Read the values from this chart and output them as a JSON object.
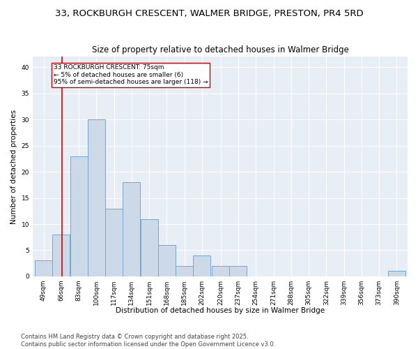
{
  "title1": "33, ROCKBURGH CRESCENT, WALMER BRIDGE, PRESTON, PR4 5RD",
  "title2": "Size of property relative to detached houses in Walmer Bridge",
  "xlabel": "Distribution of detached houses by size in Walmer Bridge",
  "ylabel": "Number of detached properties",
  "bin_labels": [
    "49sqm",
    "66sqm",
    "83sqm",
    "100sqm",
    "117sqm",
    "134sqm",
    "151sqm",
    "168sqm",
    "185sqm",
    "202sqm",
    "220sqm",
    "237sqm",
    "254sqm",
    "271sqm",
    "288sqm",
    "305sqm",
    "322sqm",
    "339sqm",
    "356sqm",
    "373sqm",
    "390sqm"
  ],
  "bin_edges": [
    49,
    66,
    83,
    100,
    117,
    134,
    151,
    168,
    185,
    202,
    220,
    237,
    254,
    271,
    288,
    305,
    322,
    339,
    356,
    373,
    390
  ],
  "bin_width": 17,
  "values": [
    3,
    8,
    23,
    30,
    13,
    18,
    11,
    6,
    2,
    4,
    2,
    2,
    0,
    0,
    0,
    0,
    0,
    0,
    0,
    0,
    1
  ],
  "bar_color": "#ccd9e8",
  "bar_edge_color": "#7aa6cc",
  "property_line_x": 75,
  "property_line_color": "#cc0000",
  "annotation_text": "33 ROCKBURGH CRESCENT: 75sqm\n← 5% of detached houses are smaller (6)\n95% of semi-detached houses are larger (118) →",
  "annotation_box_color": "#ffffff",
  "annotation_box_edge_color": "#cc0000",
  "ylim": [
    0,
    42
  ],
  "yticks": [
    0,
    5,
    10,
    15,
    20,
    25,
    30,
    35,
    40
  ],
  "bg_color": "#e8eef5",
  "grid_color": "#ffffff",
  "footer_text": "Contains HM Land Registry data © Crown copyright and database right 2025.\nContains public sector information licensed under the Open Government Licence v3.0.",
  "title_fontsize": 9.5,
  "subtitle_fontsize": 8.5,
  "axis_label_fontsize": 7.5,
  "tick_fontsize": 6.5,
  "annotation_fontsize": 6.5,
  "footer_fontsize": 6.0
}
